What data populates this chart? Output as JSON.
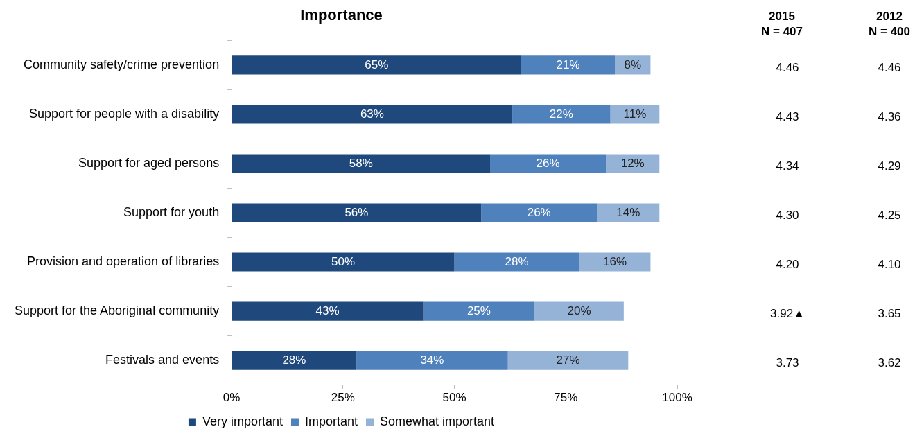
{
  "chart_data": {
    "type": "bar",
    "orientation": "horizontal",
    "stacked": true,
    "title": "Importance",
    "categories": [
      "Community safety/crime prevention",
      "Support for people with a disability",
      "Support for aged persons",
      "Support for youth",
      "Provision and operation of libraries",
      "Support for the Aboriginal community",
      "Festivals and events"
    ],
    "series": [
      {
        "name": "Very important",
        "color": "#1f497d",
        "values": [
          65,
          63,
          58,
          56,
          50,
          43,
          28
        ],
        "value_labels": [
          "65%",
          "63%",
          "58%",
          "56%",
          "50%",
          "43%",
          "28%"
        ]
      },
      {
        "name": "Important",
        "color": "#4f81bd",
        "values": [
          21,
          22,
          26,
          26,
          28,
          25,
          34
        ],
        "value_labels": [
          "21%",
          "22%",
          "26%",
          "26%",
          "28%",
          "25%",
          "34%"
        ]
      },
      {
        "name": "Somewhat important",
        "color": "#95b3d7",
        "values": [
          8,
          11,
          12,
          14,
          16,
          20,
          27
        ],
        "value_labels": [
          "8%",
          "11%",
          "12%",
          "14%",
          "16%",
          "20%",
          "27%"
        ]
      }
    ],
    "xlim": [
      0,
      100
    ],
    "xticks": [
      {
        "value": 0,
        "label": "0%"
      },
      {
        "value": 25,
        "label": "25%"
      },
      {
        "value": 50,
        "label": "50%"
      },
      {
        "value": 75,
        "label": "75%"
      },
      {
        "value": 100,
        "label": "100%"
      }
    ],
    "grid": false,
    "legend": "bottom",
    "annotations": [
      "2015\nN = 407",
      "2012\nN = 400",
      "4.46",
      "4.46",
      "4.43",
      "4.36",
      "4.34",
      "4.29",
      "4.30",
      "4.25",
      "4.20",
      "4.10",
      "3.92▲",
      "3.65",
      "3.73",
      "3.62"
    ]
  }
}
